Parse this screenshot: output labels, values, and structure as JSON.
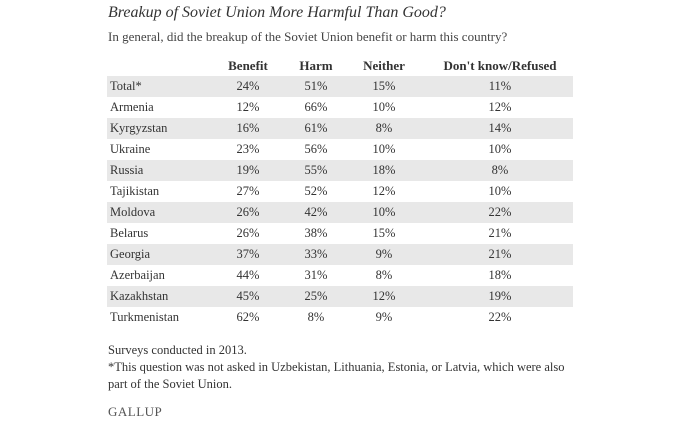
{
  "title": "Breakup of Soviet Union More Harmful Than Good?",
  "subtitle": "In general, did the breakup of the Soviet Union benefit or harm this country?",
  "table": {
    "header": [
      "Benefit",
      "Harm",
      "Neither",
      "Don't know/Refused"
    ],
    "rows": [
      [
        "Total*",
        "24%",
        "51%",
        "15%",
        "11%"
      ],
      [
        "Armenia",
        "12%",
        "66%",
        "10%",
        "12%"
      ],
      [
        "Kyrgyzstan",
        "16%",
        "61%",
        "8%",
        "14%"
      ],
      [
        "Ukraine",
        "23%",
        "56%",
        "10%",
        "10%"
      ],
      [
        "Russia",
        "19%",
        "55%",
        "18%",
        "8%"
      ],
      [
        "Tajikistan",
        "27%",
        "52%",
        "12%",
        "10%"
      ],
      [
        "Moldova",
        "26%",
        "42%",
        "10%",
        "22%"
      ],
      [
        "Belarus",
        "26%",
        "38%",
        "15%",
        "21%"
      ],
      [
        "Georgia",
        "37%",
        "33%",
        "9%",
        "21%"
      ],
      [
        "Azerbaijan",
        "44%",
        "31%",
        "8%",
        "18%"
      ],
      [
        "Kazakhstan",
        "45%",
        "25%",
        "12%",
        "19%"
      ],
      [
        "Turkmenistan",
        "62%",
        "8%",
        "9%",
        "22%"
      ]
    ]
  },
  "notes": [
    "Surveys conducted in 2013.",
    "*This question was not asked in Uzbekistan, Lithuania, Estonia, or Latvia, which were also part of the Soviet Union."
  ],
  "logo": "GALLUP"
}
